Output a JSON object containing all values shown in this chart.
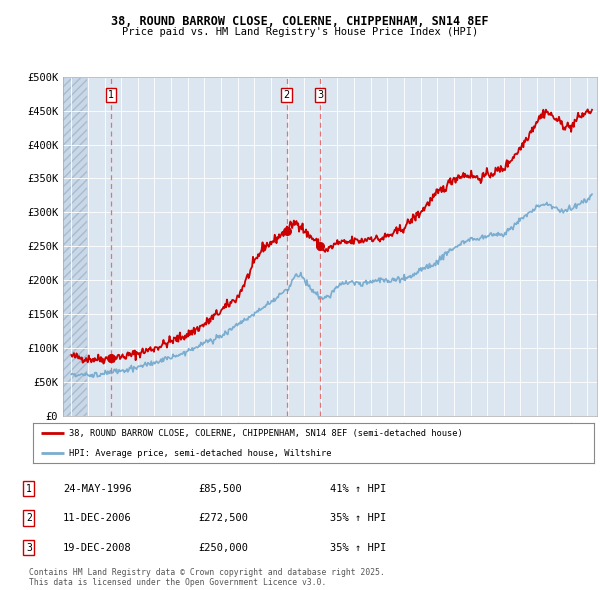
{
  "title1": "38, ROUND BARROW CLOSE, COLERNE, CHIPPENHAM, SN14 8EF",
  "title2": "Price paid vs. HM Land Registry's House Price Index (HPI)",
  "ylim": [
    0,
    500000
  ],
  "yticks": [
    0,
    50000,
    100000,
    150000,
    200000,
    250000,
    300000,
    350000,
    400000,
    450000,
    500000
  ],
  "ytick_labels": [
    "£0",
    "£50K",
    "£100K",
    "£150K",
    "£200K",
    "£250K",
    "£300K",
    "£350K",
    "£400K",
    "£450K",
    "£500K"
  ],
  "xlim_start": 1993.5,
  "xlim_end": 2025.6,
  "background_color": "#ffffff",
  "plot_bg_color": "#dce6f1",
  "grid_color": "#ffffff",
  "red_line_color": "#cc0000",
  "blue_line_color": "#7aadcf",
  "dashed_line_color": "#e87070",
  "purchase1_x": 1996.39,
  "purchase1_y": 85500,
  "purchase2_x": 2006.94,
  "purchase2_y": 272500,
  "purchase3_x": 2008.96,
  "purchase3_y": 250000,
  "legend_line1": "38, ROUND BARROW CLOSE, COLERNE, CHIPPENHAM, SN14 8EF (semi-detached house)",
  "legend_line2": "HPI: Average price, semi-detached house, Wiltshire",
  "table_rows": [
    [
      "1",
      "24-MAY-1996",
      "£85,500",
      "41% ↑ HPI"
    ],
    [
      "2",
      "11-DEC-2006",
      "£272,500",
      "35% ↑ HPI"
    ],
    [
      "3",
      "19-DEC-2008",
      "£250,000",
      "35% ↑ HPI"
    ]
  ],
  "footer": "Contains HM Land Registry data © Crown copyright and database right 2025.\nThis data is licensed under the Open Government Licence v3.0."
}
